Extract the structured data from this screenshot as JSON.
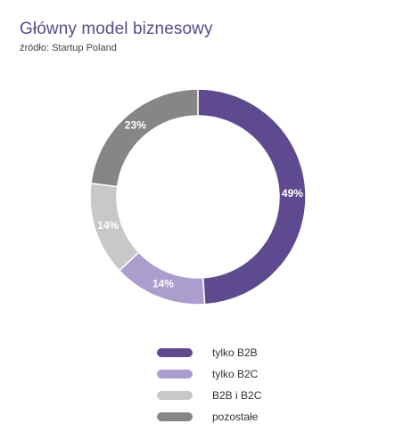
{
  "chart_data": {
    "type": "pie",
    "title": "Główny model biznesowy",
    "subtitle": "źródło: Startup Poland",
    "categories": [
      "tylko B2B",
      "tylko B2C",
      "B2B i B2C",
      "pozostałe"
    ],
    "values": [
      49,
      14,
      14,
      23
    ],
    "value_labels": [
      "49%",
      "14%",
      "14%",
      "23%"
    ],
    "colors": [
      "#5e4b8f",
      "#ab9dcd",
      "#c8c8c8",
      "#868686"
    ],
    "donut": true,
    "legend_position": "bottom"
  }
}
